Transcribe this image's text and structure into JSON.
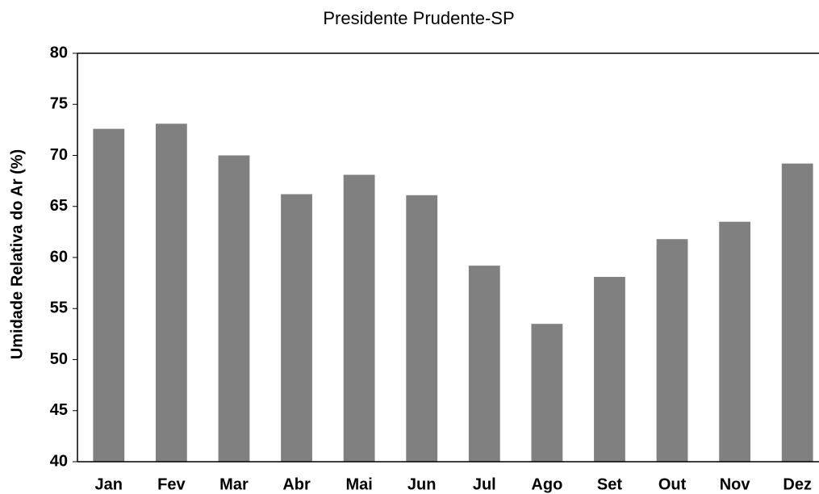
{
  "chart_data": {
    "type": "bar",
    "title": "Presidente Prudente-SP",
    "y_label": "Umidade Relativa do Ar (%)",
    "categories": [
      "Jan",
      "Fev",
      "Mar",
      "Abr",
      "Mai",
      "Jun",
      "Jul",
      "Ago",
      "Set",
      "Out",
      "Nov",
      "Dez"
    ],
    "values": [
      72.6,
      73.1,
      70.0,
      66.2,
      68.1,
      66.1,
      59.2,
      53.5,
      58.1,
      61.8,
      63.5,
      69.2
    ],
    "color": "#808080",
    "ylim": [
      40,
      80
    ],
    "yticks": [
      40,
      45,
      50,
      55,
      60,
      65,
      70,
      75,
      80
    ],
    "grid": false
  }
}
